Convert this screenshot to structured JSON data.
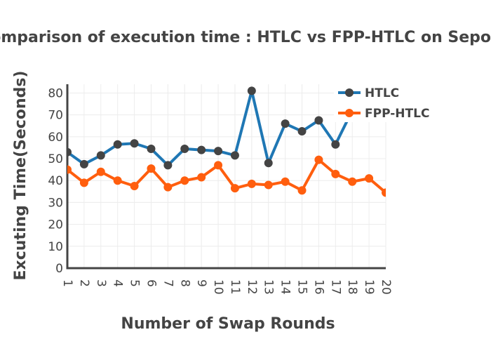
{
  "chart_data": {
    "type": "line",
    "title": "Comparison of execution time : HTLC vs FPP-HTLC on Sepolia",
    "xlabel": "Number of Swap Rounds",
    "ylabel": "Excuting Time(Seconds)",
    "x": [
      "1",
      "2",
      "3",
      "4",
      "5",
      "6",
      "7",
      "8",
      "9",
      "10",
      "11",
      "12",
      "13",
      "14",
      "15",
      "16",
      "17",
      "18",
      "19",
      "20"
    ],
    "ylim": [
      0,
      84
    ],
    "yticks": [
      0,
      10,
      20,
      30,
      40,
      50,
      60,
      70,
      80
    ],
    "grid": true,
    "legend_position": "top-right",
    "series": [
      {
        "name": "HTLC",
        "color": "#1f77b4",
        "values": [
          53,
          47.5,
          51.5,
          56.5,
          57,
          54.5,
          47,
          54.5,
          54,
          53.5,
          51.5,
          81,
          48,
          66,
          62.5,
          67.5,
          56.5,
          72,
          80,
          87
        ]
      },
      {
        "name": "FPP-HTLC",
        "color": "#ff5e0e",
        "values": [
          45,
          39,
          44,
          40,
          37.5,
          45.5,
          37,
          40,
          41.5,
          47,
          36.5,
          38.5,
          38,
          39.5,
          35.5,
          49.5,
          43,
          39.5,
          41,
          34.5
        ]
      }
    ]
  }
}
